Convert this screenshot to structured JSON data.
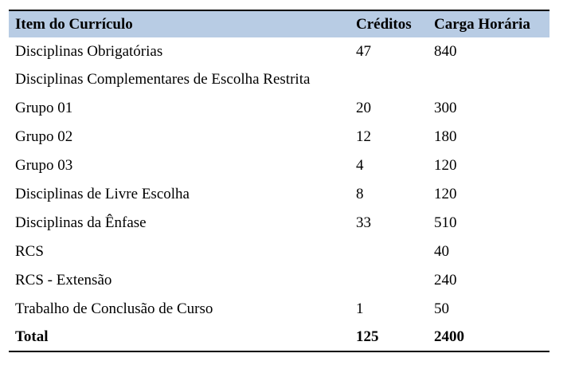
{
  "table": {
    "headers": [
      "Item do Currículo",
      "Créditos",
      "Carga Horária"
    ],
    "rows": [
      [
        "Disciplinas Obrigatórias",
        "47",
        "840"
      ],
      [
        "Disciplinas Complementares de Escolha Restrita",
        "",
        ""
      ],
      [
        "Grupo 01",
        "20",
        "300"
      ],
      [
        "Grupo 02",
        "12",
        "180"
      ],
      [
        "Grupo 03",
        "4",
        "120"
      ],
      [
        "Disciplinas de Livre Escolha",
        "8",
        "120"
      ],
      [
        "Disciplinas da Ênfase",
        "33",
        "510"
      ],
      [
        "RCS",
        "",
        "40"
      ],
      [
        "RCS - Extensão",
        "",
        "240"
      ],
      [
        "Trabalho de Conclusão de Curso",
        "1",
        "50"
      ]
    ],
    "total": [
      "Total",
      "125",
      "2400"
    ],
    "header_color": "#b8cce4"
  }
}
